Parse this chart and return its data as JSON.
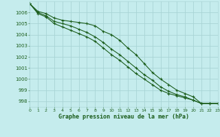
{
  "title": "Graphe pression niveau de la mer (hPa)",
  "background_color": "#c5eced",
  "grid_color": "#a8d4d5",
  "line_color": "#1a5c1a",
  "x_min": 0,
  "x_max": 23,
  "y_min": 997.5,
  "y_max": 1007.0,
  "y_ticks": [
    998,
    999,
    1000,
    1001,
    1002,
    1003,
    1004,
    1005,
    1006
  ],
  "hours": [
    0,
    1,
    2,
    3,
    4,
    5,
    6,
    7,
    8,
    9,
    10,
    11,
    12,
    13,
    14,
    15,
    16,
    17,
    18,
    19,
    20,
    21,
    22,
    23
  ],
  "line1": [
    1006.8,
    1006.1,
    1005.9,
    1005.5,
    1005.3,
    1005.2,
    1005.1,
    1005.0,
    1004.8,
    1004.3,
    1004.0,
    1003.5,
    1002.8,
    1002.2,
    1001.4,
    1000.6,
    1000.0,
    999.5,
    999.0,
    998.7,
    998.4,
    997.8,
    997.8,
    997.8
  ],
  "line2": [
    1006.8,
    1006.0,
    1005.7,
    1005.2,
    1005.0,
    1004.8,
    1004.5,
    1004.2,
    1003.8,
    1003.3,
    1002.7,
    1002.2,
    1001.6,
    1001.0,
    1000.4,
    999.9,
    999.3,
    998.9,
    998.6,
    998.4,
    998.1,
    997.8,
    997.8,
    997.8
  ],
  "line3": [
    1006.8,
    1005.9,
    1005.6,
    1005.0,
    1004.7,
    1004.4,
    1004.1,
    1003.8,
    1003.4,
    1002.8,
    1002.2,
    1001.7,
    1001.1,
    1000.5,
    1000.0,
    999.5,
    999.0,
    998.7,
    998.5,
    998.3,
    998.1,
    997.8,
    997.8,
    997.8
  ]
}
